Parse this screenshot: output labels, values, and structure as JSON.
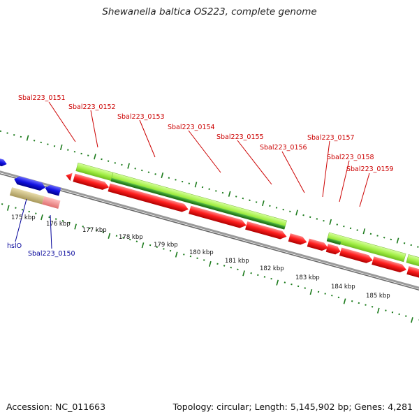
{
  "title": "Shewanella baltica OS223, complete genome",
  "footer": {
    "accession": "Accession: NC_011663",
    "summary": "Topology: circular; Length: 5,145,902 bp; Genes: 4,281"
  },
  "colors": {
    "background": "#ffffff",
    "forward_gene_light": "#a6f04a",
    "forward_gene_dark": "#2e8b22",
    "reverse_gene_light": "#ff2020",
    "reverse_gene_dark": "#cc0000",
    "blue_gene": "#1010e0",
    "cyan_gene": "#00e5ee",
    "khaki_gene": "#c8b878",
    "pink_gene": "#f09090",
    "backbone": "#888888",
    "tick_marks": "#1a7a1a",
    "label_top": "#cc0000",
    "label_bottom": "#000099",
    "text": "#111111"
  },
  "gene_labels_top": [
    "Sbal223_0151",
    "Sbal223_0152",
    "Sbal223_0153",
    "Sbal223_0154",
    "Sbal223_0155",
    "Sbal223_0156",
    "Sbal223_0157",
    "Sbal223_0158",
    "Sbal223_0159"
  ],
  "gene_labels_bottom": [
    "hslO",
    "Sbal223_0150"
  ],
  "scale_labels": [
    "175 kbp",
    "176 kbp",
    "177 kbp",
    "178 kbp",
    "179 kbp",
    "180 kbp",
    "181 kbp",
    "182 kbp",
    "183 kbp",
    "184 kbp",
    "185 kbp"
  ]
}
